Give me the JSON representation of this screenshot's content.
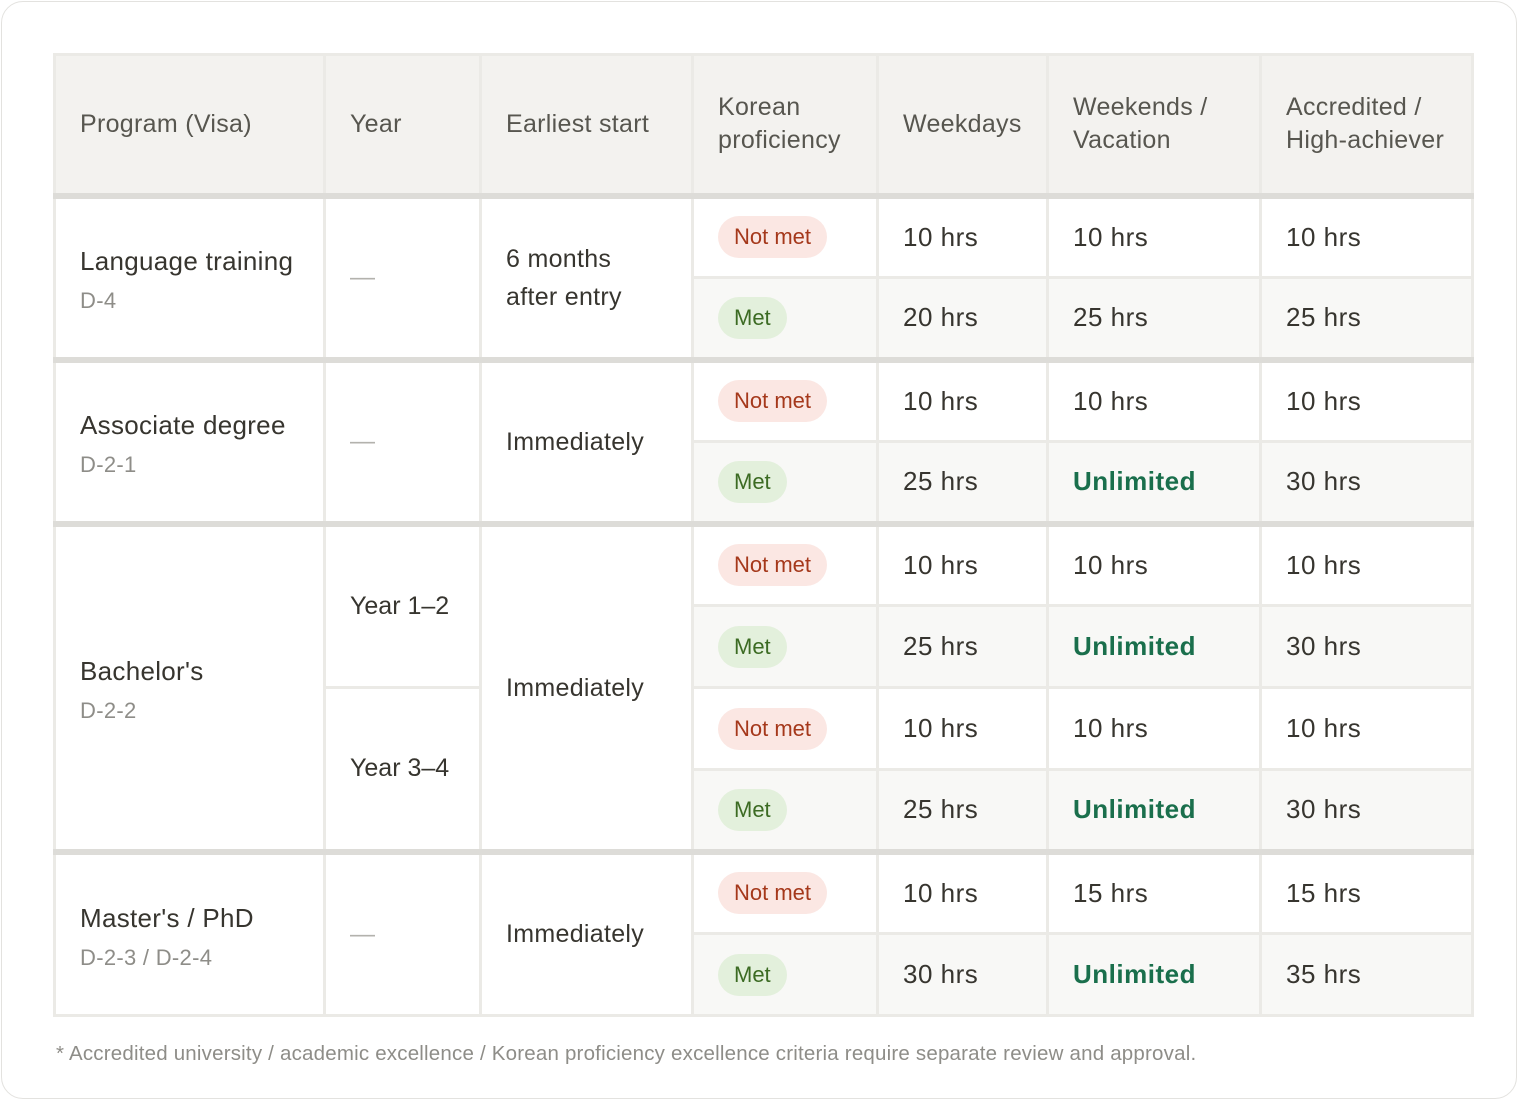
{
  "headers": [
    "Program (Visa)",
    "Year",
    "Earliest start",
    "Korean proficiency",
    "Weekdays",
    "Weekends / Vacation",
    "Accredited / High-achiever"
  ],
  "groups": [
    {
      "name": "Language training",
      "visa": "D-4",
      "start": "6 months after entry",
      "years": [
        {
          "label": "—",
          "rows": [
            {
              "proficiency": "Not met",
              "weekdays": "10 hrs",
              "weekends": "10 hrs",
              "accredited": "10 hrs"
            },
            {
              "proficiency": "Met",
              "weekdays": "20 hrs",
              "weekends": "25 hrs",
              "accredited": "25 hrs"
            }
          ]
        }
      ]
    },
    {
      "name": "Associate degree",
      "visa": "D-2-1",
      "start": "Immediately",
      "years": [
        {
          "label": "—",
          "rows": [
            {
              "proficiency": "Not met",
              "weekdays": "10 hrs",
              "weekends": "10 hrs",
              "accredited": "10 hrs"
            },
            {
              "proficiency": "Met",
              "weekdays": "25 hrs",
              "weekends": "Unlimited",
              "accredited": "30 hrs"
            }
          ]
        }
      ]
    },
    {
      "name": "Bachelor's",
      "visa": "D-2-2",
      "start": "Immediately",
      "years": [
        {
          "label": "Year 1–2",
          "rows": [
            {
              "proficiency": "Not met",
              "weekdays": "10 hrs",
              "weekends": "10 hrs",
              "accredited": "10 hrs"
            },
            {
              "proficiency": "Met",
              "weekdays": "25 hrs",
              "weekends": "Unlimited",
              "accredited": "30 hrs"
            }
          ]
        },
        {
          "label": "Year 3–4",
          "rows": [
            {
              "proficiency": "Not met",
              "weekdays": "10 hrs",
              "weekends": "10 hrs",
              "accredited": "10 hrs"
            },
            {
              "proficiency": "Met",
              "weekdays": "25 hrs",
              "weekends": "Unlimited",
              "accredited": "30 hrs"
            }
          ]
        }
      ]
    },
    {
      "name": "Master's / PhD",
      "visa": "D-2-3 / D-2-4",
      "start": "Immediately",
      "years": [
        {
          "label": "—",
          "rows": [
            {
              "proficiency": "Not met",
              "weekdays": "10 hrs",
              "weekends": "15 hrs",
              "accredited": "15 hrs"
            },
            {
              "proficiency": "Met",
              "weekdays": "30 hrs",
              "weekends": "Unlimited",
              "accredited": "35 hrs"
            }
          ]
        }
      ]
    }
  ],
  "footnote": "* Accredited university / academic excellence / Korean proficiency excellence criteria require separate review and approval.",
  "colors": {
    "not_met_bg": "#fbe7e3",
    "not_met_text": "#a5381b",
    "met_bg": "#e3f0dc",
    "met_text": "#3c6b23",
    "unlimited": "#1a6f4c",
    "header_bg": "#f3f2ef"
  }
}
